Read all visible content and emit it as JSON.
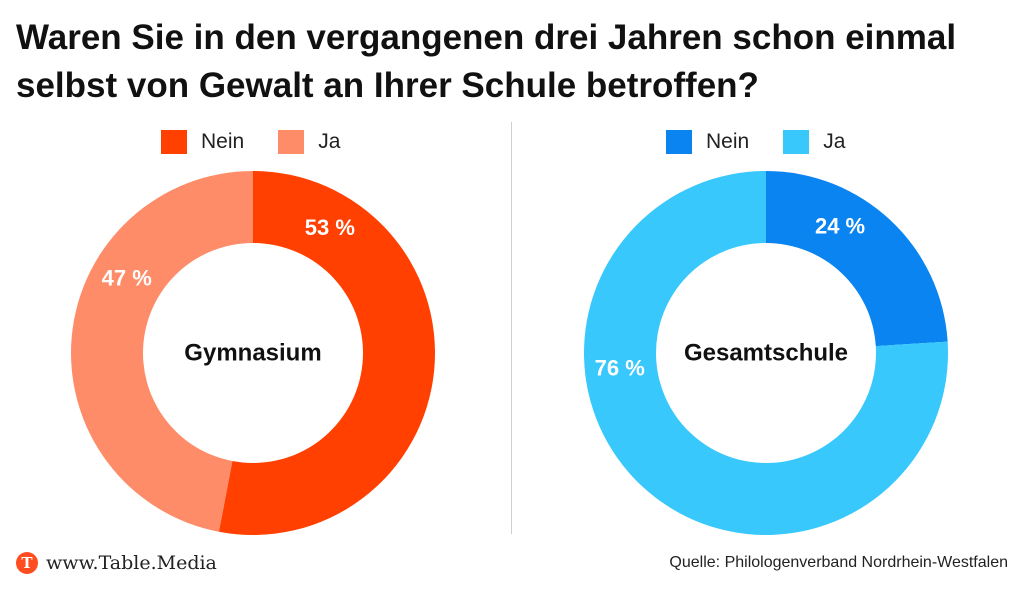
{
  "title": "Waren Sie in den vergangenen drei Jahren schon einmal selbst von Gewalt an Ihrer Schule betroffen?",
  "chart_data": [
    {
      "type": "pie",
      "center_label": "Gymnasium",
      "categories": [
        "Nein",
        "Ja"
      ],
      "values": [
        53,
        47
      ],
      "value_labels": [
        "53 %",
        "47 %"
      ],
      "colors": [
        "#ff4000",
        "#ff8c69"
      ],
      "legend_position": "top"
    },
    {
      "type": "pie",
      "center_label": "Gesamtschule",
      "categories": [
        "Nein",
        "Ja"
      ],
      "values": [
        24,
        76
      ],
      "value_labels": [
        "24 %",
        "76 %"
      ],
      "colors": [
        "#0a84f0",
        "#38c8fc"
      ],
      "legend_position": "top"
    }
  ],
  "footer": {
    "logo_letter": "T",
    "brand": "www.Table.Media",
    "source": "Quelle: Philologenverband Nordrhein-Westfalen"
  }
}
